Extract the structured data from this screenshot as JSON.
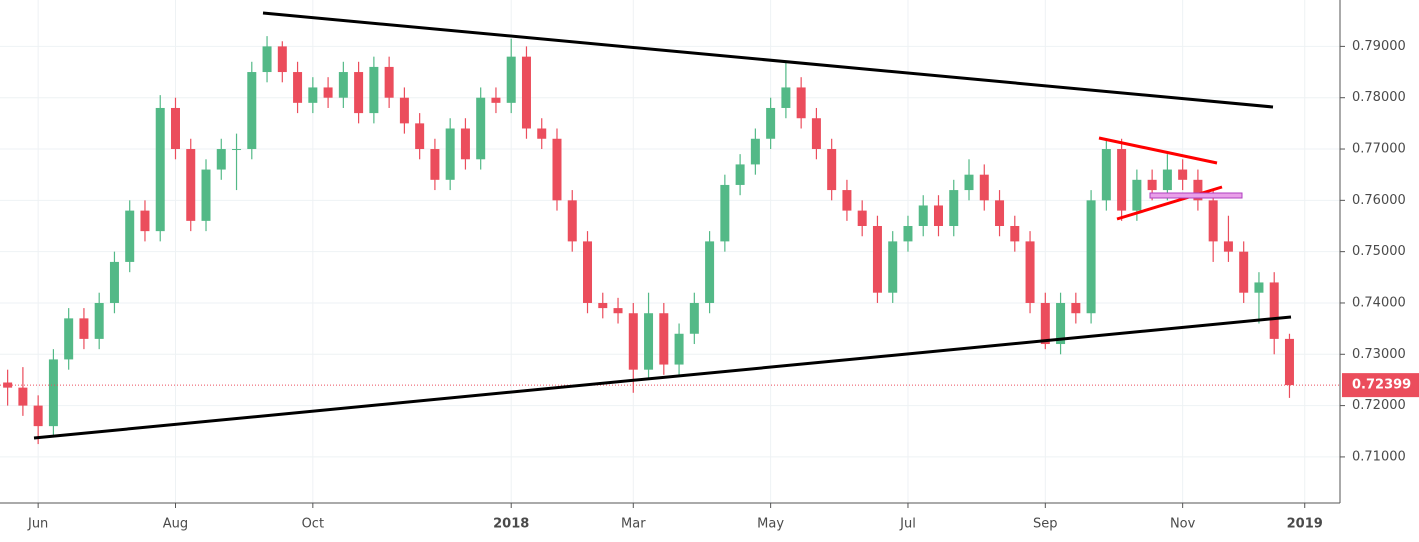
{
  "chart_data": {
    "type": "candlestick",
    "categories": [
      null,
      null,
      "Jun",
      null,
      null,
      null,
      null,
      null,
      null,
      null,
      null,
      "Aug",
      null,
      null,
      null,
      null,
      null,
      null,
      null,
      null,
      "Oct",
      null,
      null,
      null,
      null,
      null,
      null,
      null,
      null,
      null,
      null,
      null,
      null,
      "2018",
      null,
      null,
      null,
      null,
      null,
      null,
      null,
      "Mar",
      null,
      null,
      null,
      null,
      null,
      null,
      null,
      null,
      "May",
      null,
      null,
      null,
      null,
      null,
      null,
      null,
      null,
      "Jul",
      null,
      null,
      null,
      null,
      null,
      null,
      null,
      null,
      "Sep",
      null,
      null,
      null,
      null,
      null,
      null,
      null,
      null,
      "Nov",
      null,
      null,
      null,
      null,
      null,
      null,
      null,
      "2019"
    ],
    "open": [
      0.7245,
      0.7235,
      0.72,
      0.716,
      0.729,
      0.737,
      0.733,
      0.74,
      0.748,
      0.758,
      0.754,
      0.778,
      0.77,
      0.756,
      0.766,
      0.77,
      0.77,
      0.785,
      0.79,
      0.785,
      0.779,
      0.782,
      0.78,
      0.785,
      0.777,
      0.786,
      0.78,
      0.775,
      0.77,
      0.764,
      0.774,
      0.768,
      0.78,
      0.779,
      0.788,
      0.774,
      0.772,
      0.76,
      0.752,
      0.74,
      0.739,
      0.738,
      0.727,
      0.738,
      0.728,
      0.734,
      0.74,
      0.752,
      0.763,
      0.767,
      0.772,
      0.778,
      0.782,
      0.776,
      0.77,
      0.762,
      0.758,
      0.755,
      0.742,
      0.752,
      0.755,
      0.759,
      0.755,
      0.762,
      0.765,
      0.76,
      0.755,
      0.752,
      0.74,
      0.732,
      0.74,
      0.738,
      0.76,
      0.77,
      0.758,
      0.764,
      0.762,
      0.766,
      0.764,
      0.76,
      0.752,
      0.75,
      0.742,
      0.744,
      0.733,
      null
    ],
    "high": [
      0.727,
      0.7275,
      0.722,
      0.731,
      0.739,
      0.739,
      0.742,
      0.75,
      0.76,
      0.76,
      0.7805,
      0.78,
      0.772,
      0.768,
      0.772,
      0.773,
      0.787,
      0.792,
      0.791,
      0.787,
      0.784,
      0.784,
      0.787,
      0.787,
      0.788,
      0.788,
      0.782,
      0.777,
      0.772,
      0.776,
      0.776,
      0.782,
      0.782,
      0.7915,
      0.79,
      0.776,
      0.774,
      0.762,
      0.754,
      0.742,
      0.741,
      0.74,
      0.742,
      0.74,
      0.736,
      0.742,
      0.754,
      0.765,
      0.769,
      0.774,
      0.78,
      0.787,
      0.784,
      0.778,
      0.772,
      0.764,
      0.76,
      0.757,
      0.754,
      0.757,
      0.761,
      0.761,
      0.764,
      0.768,
      0.767,
      0.762,
      0.757,
      0.754,
      0.742,
      0.742,
      0.742,
      0.762,
      0.772,
      0.772,
      0.766,
      0.766,
      0.769,
      0.768,
      0.766,
      0.762,
      0.757,
      0.752,
      0.746,
      0.746,
      0.734,
      null
    ],
    "low": [
      0.72,
      0.718,
      0.7125,
      0.714,
      0.727,
      0.731,
      0.731,
      0.738,
      0.746,
      0.752,
      0.752,
      0.768,
      0.754,
      0.754,
      0.764,
      0.762,
      0.768,
      0.783,
      0.783,
      0.777,
      0.777,
      0.778,
      0.778,
      0.775,
      0.775,
      0.778,
      0.773,
      0.768,
      0.762,
      0.762,
      0.766,
      0.766,
      0.777,
      0.777,
      0.772,
      0.77,
      0.758,
      0.75,
      0.738,
      0.737,
      0.736,
      0.7225,
      0.725,
      0.726,
      0.726,
      0.732,
      0.738,
      0.75,
      0.761,
      0.765,
      0.77,
      0.776,
      0.774,
      0.768,
      0.76,
      0.756,
      0.753,
      0.74,
      0.74,
      0.75,
      0.753,
      0.753,
      0.753,
      0.76,
      0.758,
      0.753,
      0.75,
      0.738,
      0.731,
      0.73,
      0.736,
      0.736,
      0.758,
      0.756,
      0.756,
      0.76,
      0.76,
      0.762,
      0.758,
      0.748,
      0.748,
      0.74,
      0.736,
      0.73,
      0.7215,
      null
    ],
    "close": [
      0.7235,
      0.72,
      0.716,
      0.729,
      0.737,
      0.733,
      0.74,
      0.748,
      0.758,
      0.754,
      0.778,
      0.77,
      0.756,
      0.766,
      0.77,
      0.77,
      0.785,
      0.79,
      0.785,
      0.779,
      0.782,
      0.78,
      0.785,
      0.777,
      0.786,
      0.78,
      0.775,
      0.77,
      0.764,
      0.774,
      0.768,
      0.78,
      0.779,
      0.788,
      0.774,
      0.772,
      0.76,
      0.752,
      0.74,
      0.739,
      0.738,
      0.727,
      0.738,
      0.728,
      0.734,
      0.74,
      0.752,
      0.763,
      0.767,
      0.772,
      0.778,
      0.782,
      0.776,
      0.77,
      0.762,
      0.758,
      0.755,
      0.742,
      0.752,
      0.755,
      0.759,
      0.755,
      0.762,
      0.765,
      0.76,
      0.755,
      0.752,
      0.74,
      0.732,
      0.74,
      0.738,
      0.76,
      0.77,
      0.758,
      0.764,
      0.762,
      0.766,
      0.764,
      0.76,
      0.752,
      0.75,
      0.742,
      0.744,
      0.733,
      0.724,
      null
    ],
    "up_color": "#53b987",
    "down_color": "#eb4d5c",
    "ylim": [
      0.70102,
      0.79904
    ],
    "yticks": [
      {
        "value": 0.71,
        "label": "0.71000"
      },
      {
        "value": 0.72,
        "label": "0.72000"
      },
      {
        "value": 0.73,
        "label": "0.73000"
      },
      {
        "value": 0.74,
        "label": "0.74000"
      },
      {
        "value": 0.75,
        "label": "0.75000"
      },
      {
        "value": 0.76,
        "label": "0.76000"
      },
      {
        "value": 0.77,
        "label": "0.77000"
      },
      {
        "value": 0.78,
        "label": "0.78000"
      },
      {
        "value": 0.79,
        "label": "0.79000"
      }
    ],
    "grid": true,
    "last_price": 0.72399,
    "last_price_color": "#eb4d5c"
  }
}
